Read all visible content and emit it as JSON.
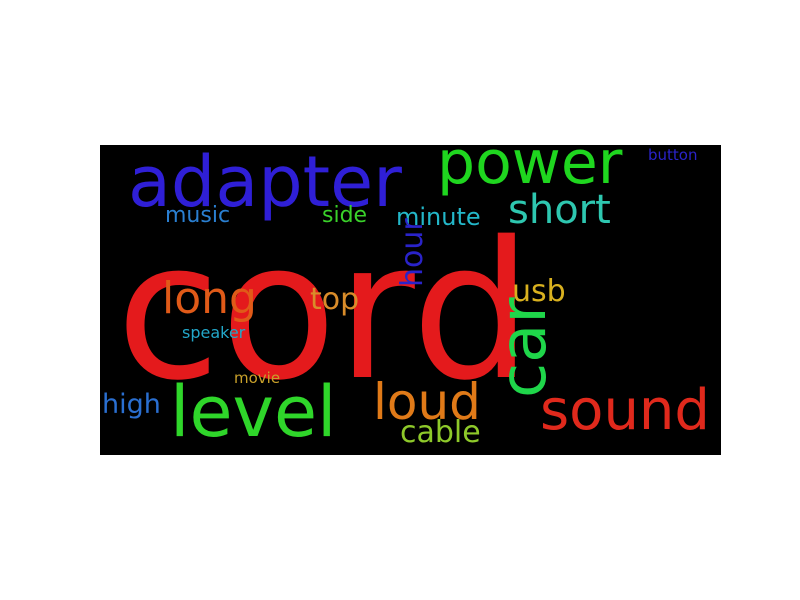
{
  "words": [
    {
      "text": "cord",
      "color": "#e41a1c",
      "orientation": "horizontal"
    },
    {
      "text": "adapter",
      "color": "#2f1fd6",
      "orientation": "horizontal"
    },
    {
      "text": "power",
      "color": "#1fd61f",
      "orientation": "horizontal"
    },
    {
      "text": "short",
      "color": "#2ec7b0",
      "orientation": "horizontal"
    },
    {
      "text": "button",
      "color": "#2a23c9",
      "orientation": "horizontal"
    },
    {
      "text": "music",
      "color": "#2a7fd1",
      "orientation": "horizontal"
    },
    {
      "text": "side",
      "color": "#3ad12a",
      "orientation": "horizontal"
    },
    {
      "text": "minute",
      "color": "#23b7c9",
      "orientation": "horizontal"
    },
    {
      "text": "long",
      "color": "#e05a18",
      "orientation": "horizontal"
    },
    {
      "text": "top",
      "color": "#d98c2a",
      "orientation": "horizontal"
    },
    {
      "text": "hour",
      "color": "#2a23c9",
      "orientation": "vertical"
    },
    {
      "text": "usb",
      "color": "#d9b11f",
      "orientation": "horizontal"
    },
    {
      "text": "car",
      "color": "#1fd64a",
      "orientation": "vertical"
    },
    {
      "text": "speaker",
      "color": "#23a7c9",
      "orientation": "horizontal"
    },
    {
      "text": "movie",
      "color": "#c9a12a",
      "orientation": "horizontal"
    },
    {
      "text": "high",
      "color": "#2a6fd1",
      "orientation": "horizontal"
    },
    {
      "text": "level",
      "color": "#2fd62a",
      "orientation": "horizontal"
    },
    {
      "text": "loud",
      "color": "#e07a18",
      "orientation": "horizontal"
    },
    {
      "text": "sound",
      "color": "#e0291c",
      "orientation": "horizontal"
    },
    {
      "text": "cable",
      "color": "#8ec92a",
      "orientation": "horizontal"
    }
  ]
}
